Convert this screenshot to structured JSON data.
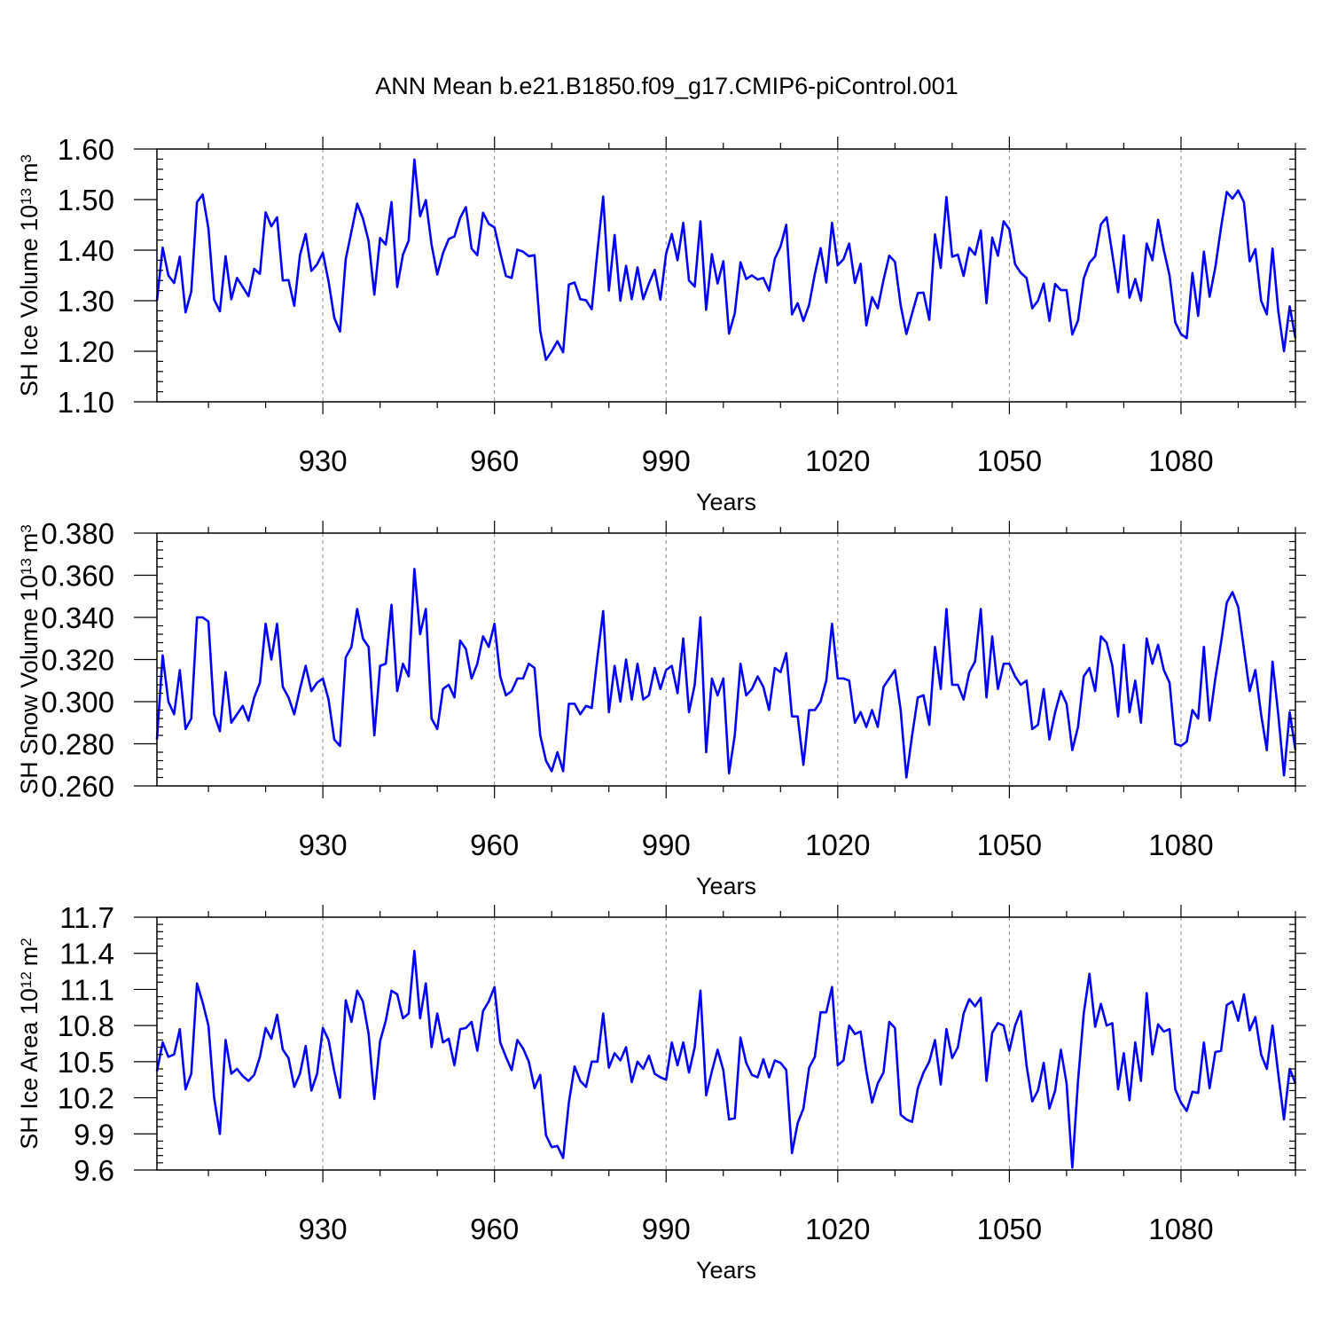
{
  "chart_data": [
    {
      "type": "line",
      "title": "ANN Mean b.e21.B1850.f09_g17.CMIP6-piControl.001",
      "ylabel_main": "SH Ice Volume 10",
      "ylabel_exp": "13",
      "ylabel_unit": "m",
      "ylabel_unit_exp": "3",
      "xlabel": "Years",
      "xlim": [
        901,
        1100
      ],
      "ylim": [
        1.1,
        1.6
      ],
      "x_ticks": [
        930,
        960,
        990,
        1020,
        1050,
        1080
      ],
      "x_tick_labels": [
        "930",
        "960",
        "990",
        "1020",
        "1050",
        "1080"
      ],
      "y_ticks": [
        1.1,
        1.2,
        1.3,
        1.4,
        1.5,
        1.6
      ],
      "y_tick_labels": [
        "1.10",
        "1.20",
        "1.30",
        "1.40",
        "1.50",
        "1.60"
      ],
      "grid": "vertical dashed at x ticks",
      "line_color": "#0000ff",
      "series": [
        {
          "name": "SH Ice Volume",
          "x_start": 901,
          "values": [
            1.3,
            1.405,
            1.35,
            1.335,
            1.387,
            1.277,
            1.318,
            1.495,
            1.51,
            1.443,
            1.302,
            1.279,
            1.388,
            1.303,
            1.345,
            1.327,
            1.309,
            1.363,
            1.353,
            1.475,
            1.447,
            1.465,
            1.34,
            1.341,
            1.29,
            1.39,
            1.432,
            1.359,
            1.372,
            1.395,
            1.338,
            1.266,
            1.239,
            1.382,
            1.437,
            1.492,
            1.463,
            1.418,
            1.312,
            1.424,
            1.411,
            1.495,
            1.327,
            1.391,
            1.419,
            1.579,
            1.467,
            1.499,
            1.411,
            1.352,
            1.394,
            1.422,
            1.427,
            1.464,
            1.485,
            1.403,
            1.39,
            1.474,
            1.452,
            1.445,
            1.395,
            1.349,
            1.345,
            1.401,
            1.397,
            1.388,
            1.39,
            1.24,
            1.183,
            1.2,
            1.22,
            1.198,
            1.332,
            1.336,
            1.303,
            1.301,
            1.283,
            1.398,
            1.506,
            1.32,
            1.43,
            1.3,
            1.369,
            1.303,
            1.366,
            1.303,
            1.334,
            1.361,
            1.302,
            1.393,
            1.432,
            1.38,
            1.454,
            1.34,
            1.328,
            1.457,
            1.282,
            1.392,
            1.334,
            1.378,
            1.235,
            1.275,
            1.376,
            1.343,
            1.35,
            1.342,
            1.345,
            1.32,
            1.383,
            1.407,
            1.45,
            1.273,
            1.295,
            1.26,
            1.292,
            1.353,
            1.404,
            1.336,
            1.454,
            1.37,
            1.382,
            1.413,
            1.335,
            1.373,
            1.251,
            1.307,
            1.285,
            1.341,
            1.389,
            1.377,
            1.291,
            1.234,
            1.275,
            1.315,
            1.316,
            1.262,
            1.431,
            1.365,
            1.505,
            1.387,
            1.391,
            1.349,
            1.405,
            1.391,
            1.439,
            1.295,
            1.425,
            1.389,
            1.457,
            1.441,
            1.372,
            1.355,
            1.345,
            1.285,
            1.3,
            1.334,
            1.26,
            1.333,
            1.321,
            1.321,
            1.233,
            1.261,
            1.344,
            1.375,
            1.388,
            1.451,
            1.465,
            1.392,
            1.317,
            1.429,
            1.306,
            1.343,
            1.3,
            1.413,
            1.38,
            1.46,
            1.4,
            1.35,
            1.257,
            1.234,
            1.226,
            1.355,
            1.27,
            1.397,
            1.308,
            1.366,
            1.445,
            1.515,
            1.502,
            1.518,
            1.495,
            1.378,
            1.402,
            1.3,
            1.273,
            1.403,
            1.28,
            1.2,
            1.289,
            1.226
          ]
        }
      ]
    },
    {
      "type": "line",
      "ylabel_main": "SH Snow Volume 10",
      "ylabel_exp": "13",
      "ylabel_unit": "m",
      "ylabel_unit_exp": "3",
      "xlabel": "Years",
      "xlim": [
        901,
        1100
      ],
      "ylim": [
        0.26,
        0.38
      ],
      "x_ticks": [
        930,
        960,
        990,
        1020,
        1050,
        1080
      ],
      "x_tick_labels": [
        "930",
        "960",
        "990",
        "1020",
        "1050",
        "1080"
      ],
      "y_ticks": [
        0.26,
        0.28,
        0.3,
        0.32,
        0.34,
        0.36,
        0.38
      ],
      "y_tick_labels": [
        "0.260",
        "0.280",
        "0.300",
        "0.320",
        "0.340",
        "0.360",
        "0.380"
      ],
      "grid": "vertical dashed at x ticks",
      "line_color": "#0000ff",
      "series": [
        {
          "name": "SH Snow Volume",
          "x_start": 901,
          "values": [
            0.282,
            0.322,
            0.3,
            0.294,
            0.315,
            0.287,
            0.292,
            0.34,
            0.34,
            0.338,
            0.294,
            0.286,
            0.314,
            0.29,
            0.294,
            0.298,
            0.291,
            0.302,
            0.309,
            0.337,
            0.32,
            0.337,
            0.307,
            0.302,
            0.294,
            0.306,
            0.317,
            0.305,
            0.309,
            0.311,
            0.301,
            0.282,
            0.279,
            0.321,
            0.326,
            0.344,
            0.33,
            0.326,
            0.284,
            0.317,
            0.318,
            0.346,
            0.305,
            0.318,
            0.312,
            0.363,
            0.332,
            0.344,
            0.292,
            0.287,
            0.306,
            0.308,
            0.302,
            0.329,
            0.325,
            0.311,
            0.318,
            0.331,
            0.326,
            0.337,
            0.312,
            0.303,
            0.305,
            0.311,
            0.311,
            0.318,
            0.316,
            0.284,
            0.272,
            0.267,
            0.276,
            0.267,
            0.299,
            0.299,
            0.294,
            0.298,
            0.297,
            0.321,
            0.343,
            0.295,
            0.317,
            0.3,
            0.32,
            0.301,
            0.318,
            0.301,
            0.303,
            0.316,
            0.306,
            0.315,
            0.317,
            0.304,
            0.33,
            0.295,
            0.308,
            0.34,
            0.276,
            0.311,
            0.303,
            0.311,
            0.266,
            0.284,
            0.318,
            0.303,
            0.306,
            0.312,
            0.307,
            0.296,
            0.316,
            0.314,
            0.323,
            0.293,
            0.293,
            0.27,
            0.296,
            0.296,
            0.3,
            0.31,
            0.337,
            0.311,
            0.311,
            0.31,
            0.29,
            0.295,
            0.288,
            0.296,
            0.288,
            0.307,
            0.311,
            0.315,
            0.296,
            0.264,
            0.284,
            0.302,
            0.303,
            0.289,
            0.326,
            0.306,
            0.344,
            0.308,
            0.308,
            0.301,
            0.314,
            0.319,
            0.344,
            0.302,
            0.331,
            0.306,
            0.318,
            0.318,
            0.312,
            0.308,
            0.31,
            0.287,
            0.289,
            0.306,
            0.282,
            0.295,
            0.305,
            0.299,
            0.277,
            0.288,
            0.312,
            0.316,
            0.305,
            0.331,
            0.328,
            0.317,
            0.293,
            0.327,
            0.295,
            0.31,
            0.29,
            0.33,
            0.318,
            0.327,
            0.315,
            0.309,
            0.28,
            0.279,
            0.281,
            0.296,
            0.292,
            0.326,
            0.291,
            0.311,
            0.328,
            0.347,
            0.352,
            0.345,
            0.325,
            0.305,
            0.315,
            0.294,
            0.277,
            0.319,
            0.294,
            0.265,
            0.295,
            0.277
          ]
        }
      ]
    },
    {
      "type": "line",
      "ylabel_main": "SH Ice Area 10",
      "ylabel_exp": "12",
      "ylabel_unit": "m",
      "ylabel_unit_exp": "2",
      "xlabel": "Years",
      "xlim": [
        901,
        1100
      ],
      "ylim": [
        9.6,
        11.7
      ],
      "x_ticks": [
        930,
        960,
        990,
        1020,
        1050,
        1080
      ],
      "x_tick_labels": [
        "930",
        "960",
        "990",
        "1020",
        "1050",
        "1080"
      ],
      "y_ticks": [
        9.6,
        9.9,
        10.2,
        10.5,
        10.8,
        11.1,
        11.4,
        11.7
      ],
      "y_tick_labels": [
        "9.6",
        "9.9",
        "10.2",
        "10.5",
        "10.8",
        "11.1",
        "11.4",
        "11.7"
      ],
      "grid": "vertical dashed at x ticks",
      "line_color": "#0000ff",
      "series": [
        {
          "name": "SH Ice Area",
          "x_start": 901,
          "values": [
            10.42,
            10.66,
            10.54,
            10.56,
            10.77,
            10.27,
            10.4,
            11.15,
            10.99,
            10.8,
            10.2,
            9.9,
            10.68,
            10.4,
            10.44,
            10.38,
            10.34,
            10.39,
            10.54,
            10.78,
            10.69,
            10.89,
            10.6,
            10.53,
            10.29,
            10.4,
            10.63,
            10.26,
            10.4,
            10.78,
            10.68,
            10.42,
            10.2,
            11.01,
            10.83,
            11.09,
            11.0,
            10.73,
            10.19,
            10.67,
            10.84,
            11.09,
            11.06,
            10.86,
            10.9,
            11.42,
            10.86,
            11.15,
            10.62,
            10.9,
            10.66,
            10.69,
            10.47,
            10.77,
            10.78,
            10.83,
            10.59,
            10.92,
            11.0,
            11.12,
            10.66,
            10.54,
            10.43,
            10.68,
            10.61,
            10.5,
            10.28,
            10.39,
            9.89,
            9.79,
            9.8,
            9.7,
            10.16,
            10.46,
            10.34,
            10.29,
            10.5,
            10.5,
            10.9,
            10.45,
            10.57,
            10.51,
            10.62,
            10.33,
            10.5,
            10.44,
            10.55,
            10.4,
            10.37,
            10.35,
            10.66,
            10.47,
            10.66,
            10.41,
            10.62,
            11.09,
            10.22,
            10.42,
            10.6,
            10.43,
            10.02,
            10.03,
            10.7,
            10.49,
            10.39,
            10.37,
            10.52,
            10.37,
            10.51,
            10.49,
            10.43,
            9.74,
            9.99,
            10.11,
            10.45,
            10.54,
            10.91,
            10.91,
            11.12,
            10.47,
            10.51,
            10.8,
            10.73,
            10.75,
            10.42,
            10.16,
            10.32,
            10.41,
            10.83,
            10.78,
            10.06,
            10.02,
            10.0,
            10.28,
            10.41,
            10.5,
            10.68,
            10.31,
            10.77,
            10.53,
            10.62,
            10.9,
            11.02,
            10.96,
            11.03,
            10.34,
            10.74,
            10.82,
            10.8,
            10.59,
            10.8,
            10.92,
            10.47,
            10.17,
            10.26,
            10.49,
            10.11,
            10.26,
            10.6,
            10.32,
            9.62,
            10.34,
            10.9,
            11.23,
            10.79,
            10.98,
            10.8,
            10.82,
            10.27,
            10.57,
            10.18,
            10.66,
            10.34,
            11.07,
            10.56,
            10.81,
            10.75,
            10.77,
            10.27,
            10.16,
            10.09,
            10.25,
            10.24,
            10.66,
            10.28,
            10.58,
            10.59,
            10.97,
            11.0,
            10.84,
            11.06,
            10.76,
            10.87,
            10.56,
            10.44,
            10.8,
            10.4,
            10.02,
            10.44,
            10.32
          ]
        }
      ]
    }
  ]
}
